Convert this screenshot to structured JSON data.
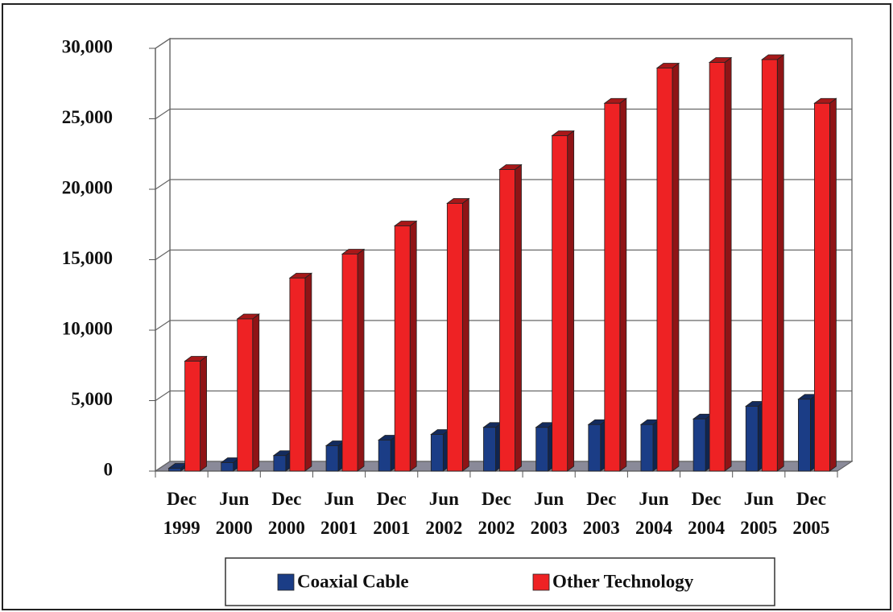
{
  "chart_data": {
    "type": "bar3d",
    "categories": [
      "Dec 1999",
      "Jun 2000",
      "Dec 2000",
      "Jun 2001",
      "Dec 2001",
      "Jun 2002",
      "Dec 2002",
      "Jun 2003",
      "Dec 2003",
      "Jun 2004",
      "Dec 2004",
      "Jun 2005",
      "Dec 2005"
    ],
    "series": [
      {
        "name": "Coaxial Cable",
        "color": "#1b3d86",
        "values": [
          200,
          600,
          1100,
          1800,
          2200,
          2600,
          3100,
          3100,
          3300,
          3300,
          3700,
          4600,
          5100
        ]
      },
      {
        "name": "Other Technology",
        "color": "#ee2224",
        "values": [
          7800,
          10800,
          13700,
          15400,
          17400,
          19000,
          21400,
          23800,
          26100,
          28600,
          29000,
          29200,
          26100
        ]
      }
    ],
    "ylim": [
      0,
      30000
    ],
    "yticks": [
      0,
      {
        "value": 5000,
        "label": "5,000"
      },
      {
        "value": 10000,
        "label": "10,000"
      },
      {
        "value": 15000,
        "label": "15,000"
      },
      {
        "value": 20000,
        "label": "20,000"
      },
      {
        "value": 25000,
        "label": "25,000"
      },
      {
        "value": 30000,
        "label": "30,000"
      }
    ],
    "grid": true,
    "legend": "bottom"
  }
}
